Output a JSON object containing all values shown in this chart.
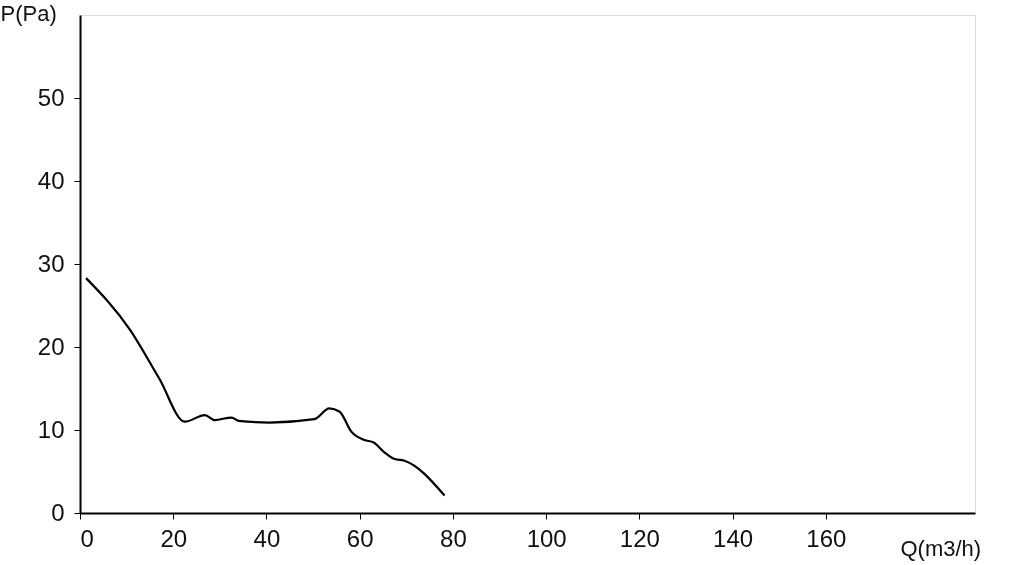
{
  "chart_data": {
    "type": "line",
    "xlabel": "Q(m3/h)",
    "ylabel": "P(Pa)",
    "x": [
      1.3,
      10.7,
      17,
      22.5,
      26.8,
      28.9,
      32.5,
      34,
      40.7,
      50.3,
      53.5,
      55.7,
      58.2,
      61,
      63,
      65.3,
      67.5,
      69.6,
      78.2
    ],
    "series": [
      {
        "color": "#000000",
        "values": [
          28.3,
          22.1,
          16.2,
          11,
          11.8,
          11.2,
          11.5,
          11.1,
          10.9,
          11.3,
          12.6,
          12.2,
          9.8,
          8.8,
          8.5,
          7.3,
          6.5,
          6.3,
          2.1
        ]
      }
    ],
    "xlim": [
      0,
      192
    ],
    "xticks": [
      0,
      20,
      40,
      60,
      80,
      100,
      120,
      140,
      160
    ],
    "ylim": [
      0,
      60
    ],
    "yticks": [
      0,
      10,
      20,
      30,
      40,
      50
    ],
    "grid": false,
    "legend": false,
    "marker": "none",
    "line_style": "solid"
  }
}
